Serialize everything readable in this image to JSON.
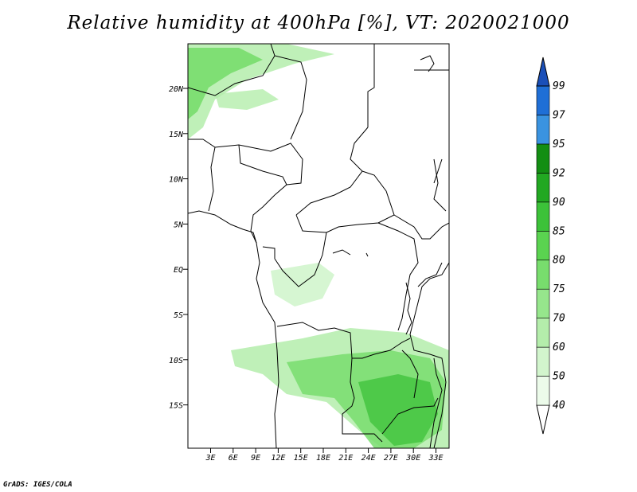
{
  "title": "Relative humidity at 400hPa [%], VT: 2020021000",
  "credit": "GrADS: IGES/COLA",
  "map": {
    "lat_ticks": [
      "20N",
      "15N",
      "10N",
      "5N",
      "EQ",
      "5S",
      "10S",
      "15S"
    ],
    "lon_ticks": [
      "3E",
      "6E",
      "9E",
      "12E",
      "15E",
      "18E",
      "21E",
      "24E",
      "27E",
      "30E",
      "33E"
    ]
  },
  "colorbar": {
    "labels": [
      "40",
      "50",
      "60",
      "70",
      "75",
      "80",
      "85",
      "90",
      "92",
      "95",
      "97",
      "99"
    ],
    "colors": [
      "#ecfbea",
      "#d2f5cd",
      "#b4edab",
      "#96e68c",
      "#78dd6d",
      "#5ad350",
      "#3cc239",
      "#22a822",
      "#138e13",
      "#3a93e0",
      "#1f6fd6",
      "#1a4fb8"
    ]
  }
}
